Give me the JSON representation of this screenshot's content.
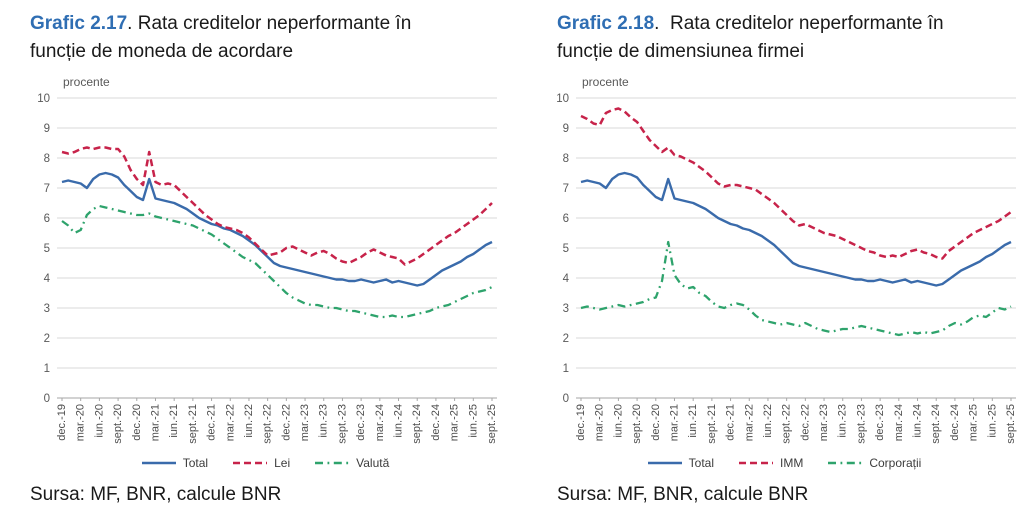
{
  "colors": {
    "title_accent": "#2F6EB3",
    "total_line": "#3A6BAB",
    "lei_imm_line": "#C7234A",
    "valuta_corp_line": "#2EA36C",
    "gridline": "#d9d9d9",
    "axis": "#a6a6a6"
  },
  "chart_data": [
    {
      "type": "line",
      "title": "Grafic 2.17. Rata creditelor neperformante în funcție de moneda de acordare",
      "title_accent": "Grafic 2.17",
      "title_line1_rest": ". Rata creditelor neperformante în",
      "title_line2": "funcție de moneda de acordare",
      "unit_label": "procente",
      "ylim": [
        0,
        10
      ],
      "y_ticks": [
        0,
        1,
        2,
        3,
        4,
        5,
        6,
        7,
        8,
        9,
        10
      ],
      "grid": "horizontal",
      "legend_position": "bottom",
      "source": "Sursa: MF, BNR, calcule BNR",
      "x_tick_every_n_points": 3,
      "x_tick_labels": [
        "dec.-19",
        "mar.-20",
        "iun.-20",
        "sept.-20",
        "dec.-20",
        "mar.-21",
        "iun.-21",
        "sept.-21",
        "dec.-21",
        "mar.-22",
        "iun.-22",
        "sept.-22",
        "dec.-22",
        "mar.-23",
        "iun.-23",
        "sept.-23",
        "dec.-23",
        "mar.-24",
        "iun.-24",
        "sept.-24",
        "dec.-24",
        "mar.-25",
        "iun.-25",
        "sept.-25"
      ],
      "series": [
        {
          "name": "Total",
          "color": "#3A6BAB",
          "style": "solid",
          "width": 2.4,
          "values": [
            7.2,
            7.25,
            7.2,
            7.15,
            7.0,
            7.3,
            7.45,
            7.5,
            7.45,
            7.35,
            7.1,
            6.9,
            6.7,
            6.6,
            7.3,
            6.65,
            6.6,
            6.55,
            6.5,
            6.4,
            6.3,
            6.15,
            6.0,
            5.9,
            5.8,
            5.75,
            5.65,
            5.6,
            5.5,
            5.4,
            5.25,
            5.1,
            4.9,
            4.7,
            4.5,
            4.4,
            4.35,
            4.3,
            4.25,
            4.2,
            4.15,
            4.1,
            4.05,
            4.0,
            3.95,
            3.95,
            3.9,
            3.9,
            3.95,
            3.9,
            3.85,
            3.9,
            3.95,
            3.85,
            3.9,
            3.85,
            3.8,
            3.75,
            3.8,
            3.95,
            4.1,
            4.25,
            4.35,
            4.45,
            4.55,
            4.7,
            4.8,
            4.95,
            5.1,
            5.2
          ]
        },
        {
          "name": "Lei",
          "color": "#C7234A",
          "style": "dashed",
          "width": 2.5,
          "values": [
            8.2,
            8.15,
            8.2,
            8.3,
            8.35,
            8.3,
            8.35,
            8.35,
            8.3,
            8.3,
            8.05,
            7.6,
            7.3,
            7.1,
            8.2,
            7.2,
            7.1,
            7.15,
            7.1,
            6.9,
            6.7,
            6.5,
            6.3,
            6.1,
            5.95,
            5.8,
            5.7,
            5.65,
            5.6,
            5.5,
            5.35,
            5.15,
            4.95,
            4.75,
            4.8,
            4.85,
            5.0,
            5.05,
            4.95,
            4.85,
            4.75,
            4.85,
            4.9,
            4.8,
            4.65,
            4.55,
            4.5,
            4.6,
            4.7,
            4.85,
            4.95,
            4.85,
            4.75,
            4.7,
            4.65,
            4.45,
            4.55,
            4.65,
            4.8,
            4.95,
            5.1,
            5.25,
            5.4,
            5.5,
            5.65,
            5.8,
            5.95,
            6.1,
            6.3,
            6.5
          ]
        },
        {
          "name": "Valută",
          "color": "#2EA36C",
          "style": "dashdot",
          "width": 2.3,
          "values": [
            5.9,
            5.75,
            5.5,
            5.6,
            6.1,
            6.3,
            6.4,
            6.35,
            6.3,
            6.25,
            6.2,
            6.15,
            6.1,
            6.1,
            6.15,
            6.05,
            6.0,
            5.95,
            5.9,
            5.85,
            5.8,
            5.75,
            5.65,
            5.55,
            5.45,
            5.3,
            5.15,
            5.0,
            4.85,
            4.7,
            4.6,
            4.5,
            4.3,
            4.1,
            3.9,
            3.7,
            3.5,
            3.35,
            3.25,
            3.15,
            3.1,
            3.1,
            3.05,
            3.0,
            3.0,
            2.95,
            2.9,
            2.9,
            2.85,
            2.8,
            2.75,
            2.7,
            2.7,
            2.75,
            2.7,
            2.7,
            2.75,
            2.8,
            2.85,
            2.9,
            3.0,
            3.05,
            3.1,
            3.2,
            3.3,
            3.4,
            3.5,
            3.55,
            3.6,
            3.7
          ]
        }
      ]
    },
    {
      "type": "line",
      "title": "Grafic 2.18. Rata creditelor neperformante în funcție de dimensiunea firmei",
      "title_accent": "Grafic 2.18",
      "title_line1_rest": ".  Rata creditelor neperformante în",
      "title_line2": "funcție de dimensiunea firmei",
      "unit_label": "procente",
      "ylim": [
        0,
        10
      ],
      "y_ticks": [
        0,
        1,
        2,
        3,
        4,
        5,
        6,
        7,
        8,
        9,
        10
      ],
      "grid": "horizontal",
      "legend_position": "bottom",
      "source": "Sursa: MF, BNR, calcule BNR",
      "x_tick_every_n_points": 3,
      "x_tick_labels": [
        "dec.-19",
        "mar.-20",
        "iun.-20",
        "sept.-20",
        "dec.-20",
        "mar.-21",
        "iun.-21",
        "sept.-21",
        "dec.-21",
        "mar.-22",
        "iun.-22",
        "sept.-22",
        "dec.-22",
        "mar.-23",
        "iun.-23",
        "sept.-23",
        "dec.-23",
        "mar.-24",
        "iun.-24",
        "sept.-24",
        "dec.-24",
        "mar.-25",
        "iun.-25",
        "sept.-25"
      ],
      "series": [
        {
          "name": "Total",
          "color": "#3A6BAB",
          "style": "solid",
          "width": 2.4,
          "values": [
            7.2,
            7.25,
            7.2,
            7.15,
            7.0,
            7.3,
            7.45,
            7.5,
            7.45,
            7.35,
            7.1,
            6.9,
            6.7,
            6.6,
            7.3,
            6.65,
            6.6,
            6.55,
            6.5,
            6.4,
            6.3,
            6.15,
            6.0,
            5.9,
            5.8,
            5.75,
            5.65,
            5.6,
            5.5,
            5.4,
            5.25,
            5.1,
            4.9,
            4.7,
            4.5,
            4.4,
            4.35,
            4.3,
            4.25,
            4.2,
            4.15,
            4.1,
            4.05,
            4.0,
            3.95,
            3.95,
            3.9,
            3.9,
            3.95,
            3.9,
            3.85,
            3.9,
            3.95,
            3.85,
            3.9,
            3.85,
            3.8,
            3.75,
            3.8,
            3.95,
            4.1,
            4.25,
            4.35,
            4.45,
            4.55,
            4.7,
            4.8,
            4.95,
            5.1,
            5.2
          ]
        },
        {
          "name": "IMM",
          "color": "#C7234A",
          "style": "dashed",
          "width": 2.5,
          "values": [
            9.4,
            9.3,
            9.15,
            9.1,
            9.5,
            9.6,
            9.65,
            9.55,
            9.35,
            9.2,
            8.9,
            8.6,
            8.4,
            8.2,
            8.35,
            8.1,
            8.05,
            7.95,
            7.85,
            7.7,
            7.55,
            7.35,
            7.15,
            7.05,
            7.1,
            7.1,
            7.05,
            7.0,
            6.95,
            6.8,
            6.65,
            6.5,
            6.3,
            6.1,
            5.9,
            5.75,
            5.8,
            5.7,
            5.6,
            5.5,
            5.45,
            5.4,
            5.3,
            5.2,
            5.1,
            5.0,
            4.9,
            4.85,
            4.75,
            4.7,
            4.75,
            4.7,
            4.8,
            4.9,
            4.95,
            4.85,
            4.8,
            4.7,
            4.65,
            4.9,
            5.05,
            5.2,
            5.35,
            5.5,
            5.6,
            5.7,
            5.8,
            5.9,
            6.05,
            6.2
          ]
        },
        {
          "name": "Corporații",
          "color": "#2EA36C",
          "style": "dashdot",
          "width": 2.3,
          "values": [
            3.0,
            3.05,
            3.0,
            2.95,
            3.0,
            3.05,
            3.1,
            3.05,
            3.1,
            3.15,
            3.2,
            3.3,
            3.35,
            3.9,
            5.2,
            4.1,
            3.8,
            3.65,
            3.7,
            3.5,
            3.4,
            3.2,
            3.05,
            3.0,
            3.1,
            3.15,
            3.1,
            2.95,
            2.75,
            2.6,
            2.55,
            2.5,
            2.45,
            2.5,
            2.45,
            2.4,
            2.5,
            2.4,
            2.3,
            2.25,
            2.2,
            2.25,
            2.3,
            2.3,
            2.35,
            2.4,
            2.35,
            2.3,
            2.25,
            2.2,
            2.15,
            2.1,
            2.15,
            2.2,
            2.15,
            2.2,
            2.15,
            2.2,
            2.25,
            2.4,
            2.5,
            2.45,
            2.55,
            2.7,
            2.75,
            2.7,
            2.85,
            3.0,
            2.95,
            3.05
          ]
        }
      ]
    }
  ]
}
